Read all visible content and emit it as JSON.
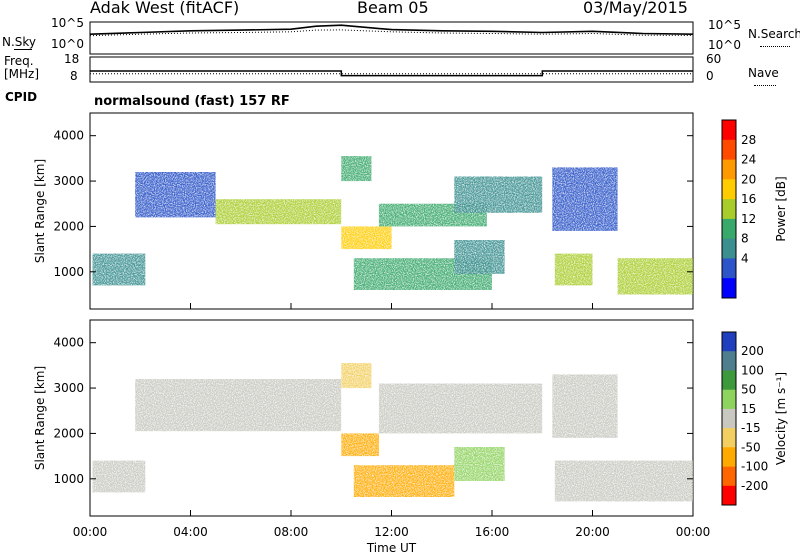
{
  "header": {
    "station": "Adak West (fitACF)",
    "beam": "Beam 05",
    "date": "03/May/2015"
  },
  "labels": {
    "n_sky": "N.Sky",
    "n_search": "N.Search",
    "freq": "Freq.",
    "mhz": "[MHz]",
    "nave": "Nave",
    "cpid": "CPID",
    "cpid_value": "normalsound (fast) 157 RF",
    "nsky_ticks": [
      "10^5",
      "10^0"
    ],
    "nsearch_ticks": [
      "10^5",
      "10^0"
    ],
    "freq_ticks": [
      "18",
      "8"
    ],
    "nave_ticks": [
      "60",
      "0"
    ]
  },
  "chart_data": [
    {
      "type": "line",
      "panel": "N.Sky / N.Search",
      "ylim": [
        1,
        100000
      ],
      "yscale": "log",
      "x": [
        "00:00",
        "02:00",
        "04:00",
        "06:00",
        "08:00",
        "09:00",
        "10:00",
        "12:00",
        "14:00",
        "16:00",
        "18:00",
        "20:00",
        "22:00",
        "24:00"
      ],
      "series": [
        {
          "name": "N.Sky",
          "values": [
            1500,
            3000,
            6000,
            8000,
            12000,
            40000,
            60000,
            10000,
            6000,
            5000,
            3000,
            5000,
            2000,
            1500
          ]
        },
        {
          "name": "N.Search",
          "values": [
            800,
            1500,
            2500,
            3000,
            4000,
            8000,
            9000,
            4000,
            2500,
            2000,
            1500,
            2000,
            1000,
            900
          ]
        }
      ]
    },
    {
      "type": "line",
      "panel": "Freq / Nave",
      "freq_ylim": [
        8,
        18
      ],
      "nave_ylim": [
        0,
        60
      ],
      "x": [
        "00:00",
        "10:00",
        "10:00",
        "18:00",
        "18:00",
        "24:00"
      ],
      "series": [
        {
          "name": "Freq.",
          "values": [
            12.3,
            12.3,
            10.1,
            10.1,
            12.3,
            12.3
          ]
        },
        {
          "name": "Nave",
          "values": [
            18,
            18,
            18,
            18,
            18,
            18
          ]
        }
      ]
    },
    {
      "type": "heatmap",
      "panel": "Power",
      "ylabel": "Slant Range [km]",
      "ylim": [
        180,
        4500
      ],
      "yticks": [
        "1000",
        "2000",
        "3000",
        "4000"
      ],
      "xticks": [
        "00:00",
        "04:00",
        "08:00",
        "12:00",
        "16:00",
        "20:00",
        "00:00"
      ],
      "colorbar": {
        "label": "Power [dB]",
        "ticks": [
          "4",
          "8",
          "12",
          "16",
          "20",
          "24",
          "28"
        ],
        "colors": [
          "#0000ff",
          "#2b55c8",
          "#3b8f8f",
          "#39a86b",
          "#a8cc2a",
          "#ffcc00",
          "#ff9900",
          "#ff4a00",
          "#ff0000"
        ]
      },
      "regions": [
        {
          "time": [
            0.1,
            2.2
          ],
          "range": [
            700,
            1400
          ],
          "power": 10
        },
        {
          "time": [
            1.8,
            5.0
          ],
          "range": [
            2200,
            3200
          ],
          "power": 8
        },
        {
          "time": [
            5.0,
            10.0
          ],
          "range": [
            2050,
            2600
          ],
          "power": 18
        },
        {
          "time": [
            10.0,
            12.0
          ],
          "range": [
            1500,
            2000
          ],
          "power": 22
        },
        {
          "time": [
            10.0,
            11.2
          ],
          "range": [
            3000,
            3550
          ],
          "power": 14
        },
        {
          "time": [
            11.5,
            15.8
          ],
          "range": [
            2000,
            2500
          ],
          "power": 16
        },
        {
          "time": [
            14.5,
            18.0
          ],
          "range": [
            2300,
            3100
          ],
          "power": 12
        },
        {
          "time": [
            10.5,
            16.0
          ],
          "range": [
            600,
            1300
          ],
          "power": 14
        },
        {
          "time": [
            14.5,
            16.5
          ],
          "range": [
            950,
            1700
          ],
          "power": 10
        },
        {
          "time": [
            18.4,
            21.0
          ],
          "range": [
            1900,
            3300
          ],
          "power": 8
        },
        {
          "time": [
            18.5,
            20.0
          ],
          "range": [
            700,
            1400
          ],
          "power": 20
        },
        {
          "time": [
            21.0,
            24.0
          ],
          "range": [
            500,
            1300
          ],
          "power": 18
        }
      ]
    },
    {
      "type": "heatmap",
      "panel": "Velocity",
      "ylabel": "Slant Range [km]",
      "xlabel": "Time UT",
      "ylim": [
        180,
        4500
      ],
      "yticks": [
        "1000",
        "2000",
        "3000",
        "4000"
      ],
      "xticks": [
        "00:00",
        "04:00",
        "08:00",
        "12:00",
        "16:00",
        "20:00",
        "00:00"
      ],
      "colorbar": {
        "label": "Velocity [m s⁻¹]",
        "ticks": [
          "200",
          "100",
          "50",
          "15",
          "-15",
          "-50",
          "-100",
          "-200"
        ],
        "colors": [
          "#1f3fbf",
          "#4f7f8f",
          "#3c9a3c",
          "#8fd35f",
          "#c8c8c0",
          "#f2cf60",
          "#ffaa00",
          "#ff6600",
          "#ff0000"
        ]
      },
      "regions": [
        {
          "time": [
            0.1,
            2.2
          ],
          "range": [
            700,
            1400
          ],
          "velocity": 0
        },
        {
          "time": [
            1.8,
            10.0
          ],
          "range": [
            2050,
            3200
          ],
          "velocity": 0
        },
        {
          "time": [
            10.0,
            11.5
          ],
          "range": [
            1500,
            2000
          ],
          "velocity": -60
        },
        {
          "time": [
            10.0,
            11.2
          ],
          "range": [
            3000,
            3550
          ],
          "velocity": -40
        },
        {
          "time": [
            11.5,
            18.0
          ],
          "range": [
            2000,
            3100
          ],
          "velocity": 5
        },
        {
          "time": [
            10.5,
            14.5
          ],
          "range": [
            600,
            1300
          ],
          "velocity": -60
        },
        {
          "time": [
            14.5,
            16.5
          ],
          "range": [
            950,
            1700
          ],
          "velocity": 30
        },
        {
          "time": [
            18.4,
            21.0
          ],
          "range": [
            1900,
            3300
          ],
          "velocity": 0
        },
        {
          "time": [
            18.5,
            24.0
          ],
          "range": [
            500,
            1400
          ],
          "velocity": 0
        }
      ]
    }
  ]
}
